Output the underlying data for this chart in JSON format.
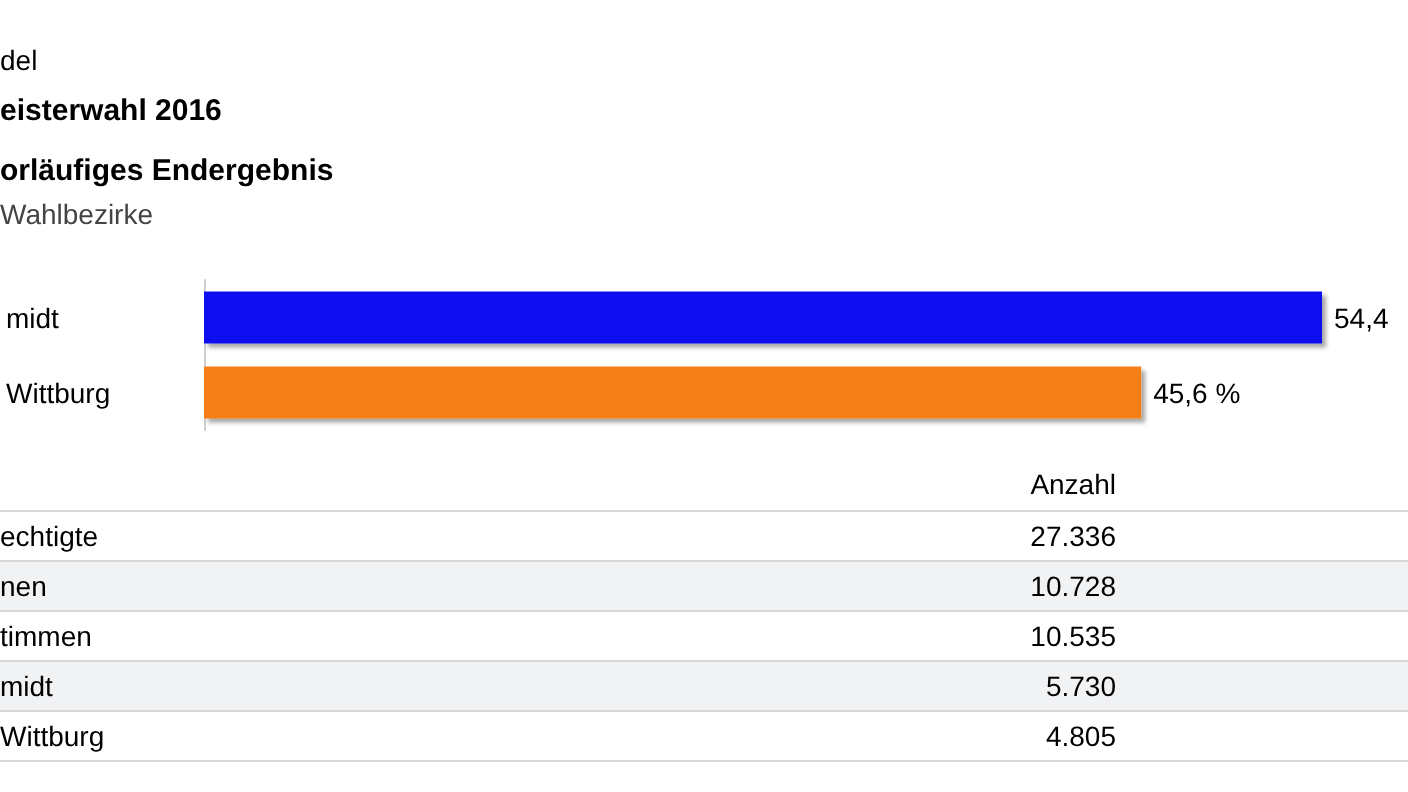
{
  "chart_data": [
    {
      "type": "bar",
      "orientation": "horizontal",
      "title": "eisterwahl 2016",
      "subtitle": "orläufiges Endergebnis",
      "annotations": [
        "del",
        "Wahlbezirke"
      ],
      "categories": [
        "midt",
        "Wittburg"
      ],
      "values": [
        54.4,
        45.6
      ],
      "colors": [
        "#1010f0",
        "#f57f17"
      ],
      "value_labels": [
        "54,4",
        "45,6 %"
      ]
    },
    {
      "type": "other",
      "annotations": [
        "Anzahl",
        "echtigte",
        "27.336",
        "nen",
        "10.728",
        "timmen",
        "10.535",
        "midt",
        "5.730",
        "Wittburg",
        "4.805"
      ]
    }
  ]
}
